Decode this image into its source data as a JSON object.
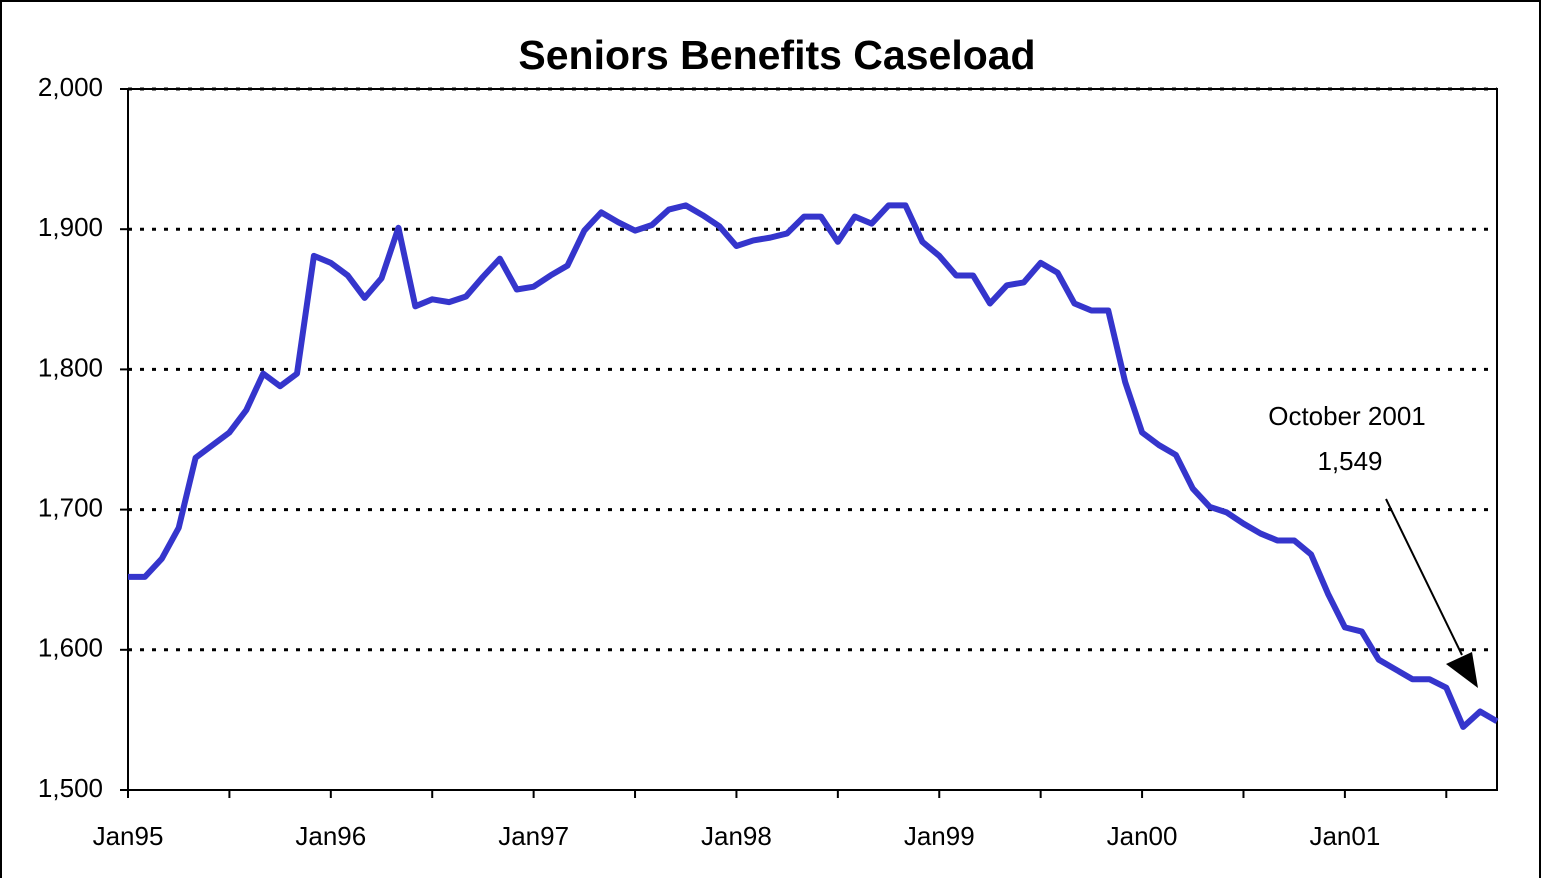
{
  "chart_data": {
    "type": "line",
    "title": "Seniors Benefits Caseload",
    "categories": [
      "Jan95",
      null,
      null,
      null,
      null,
      null,
      null,
      null,
      null,
      null,
      null,
      null,
      "Jan96",
      null,
      null,
      null,
      null,
      null,
      null,
      null,
      null,
      null,
      null,
      null,
      "Jan97",
      null,
      null,
      null,
      null,
      null,
      null,
      null,
      null,
      null,
      null,
      null,
      "Jan98",
      null,
      null,
      null,
      null,
      null,
      null,
      null,
      null,
      null,
      null,
      null,
      "Jan99",
      null,
      null,
      null,
      null,
      null,
      null,
      null,
      null,
      null,
      null,
      null,
      "Jan00",
      null,
      null,
      null,
      null,
      null,
      null,
      null,
      null,
      null,
      null,
      null,
      "Jan01",
      null,
      null,
      null,
      null,
      null,
      null,
      null,
      null,
      null
    ],
    "series": [
      {
        "name": "Seniors Benefits Caseload",
        "color": "#3535cc",
        "values": [
          1652,
          1652,
          1665,
          1687,
          1737,
          1746,
          1755,
          1771,
          1797,
          1788,
          1797,
          1881,
          1876,
          1867,
          1851,
          1865,
          1901,
          1845,
          1850,
          1848,
          1852,
          1866,
          1879,
          1857,
          1859,
          1867,
          1874,
          1899,
          1912,
          1905,
          1899,
          1903,
          1914,
          1917,
          1910,
          1902,
          1888,
          1892,
          1894,
          1897,
          1909,
          1909,
          1891,
          1909,
          1904,
          1917,
          1917,
          1891,
          1881,
          1867,
          1867,
          1847,
          1860,
          1862,
          1876,
          1869,
          1847,
          1842,
          1842,
          1791,
          1755,
          1746,
          1739,
          1715,
          1702,
          1698,
          1690,
          1683,
          1678,
          1678,
          1668,
          1640,
          1616,
          1613,
          1593,
          1586,
          1579,
          1579,
          1573,
          1545,
          1556,
          1549
        ]
      }
    ],
    "ylim": [
      1500,
      2000
    ],
    "yticks": [
      {
        "value": 1500,
        "label": "1,500"
      },
      {
        "value": 1600,
        "label": "1,600"
      },
      {
        "value": 1700,
        "label": "1,700"
      },
      {
        "value": 1800,
        "label": "1,800"
      },
      {
        "value": 1900,
        "label": "1,900"
      },
      {
        "value": 2000,
        "label": "2,000"
      }
    ],
    "grid": true,
    "annotations": [
      "October 2001",
      "1,549"
    ]
  }
}
